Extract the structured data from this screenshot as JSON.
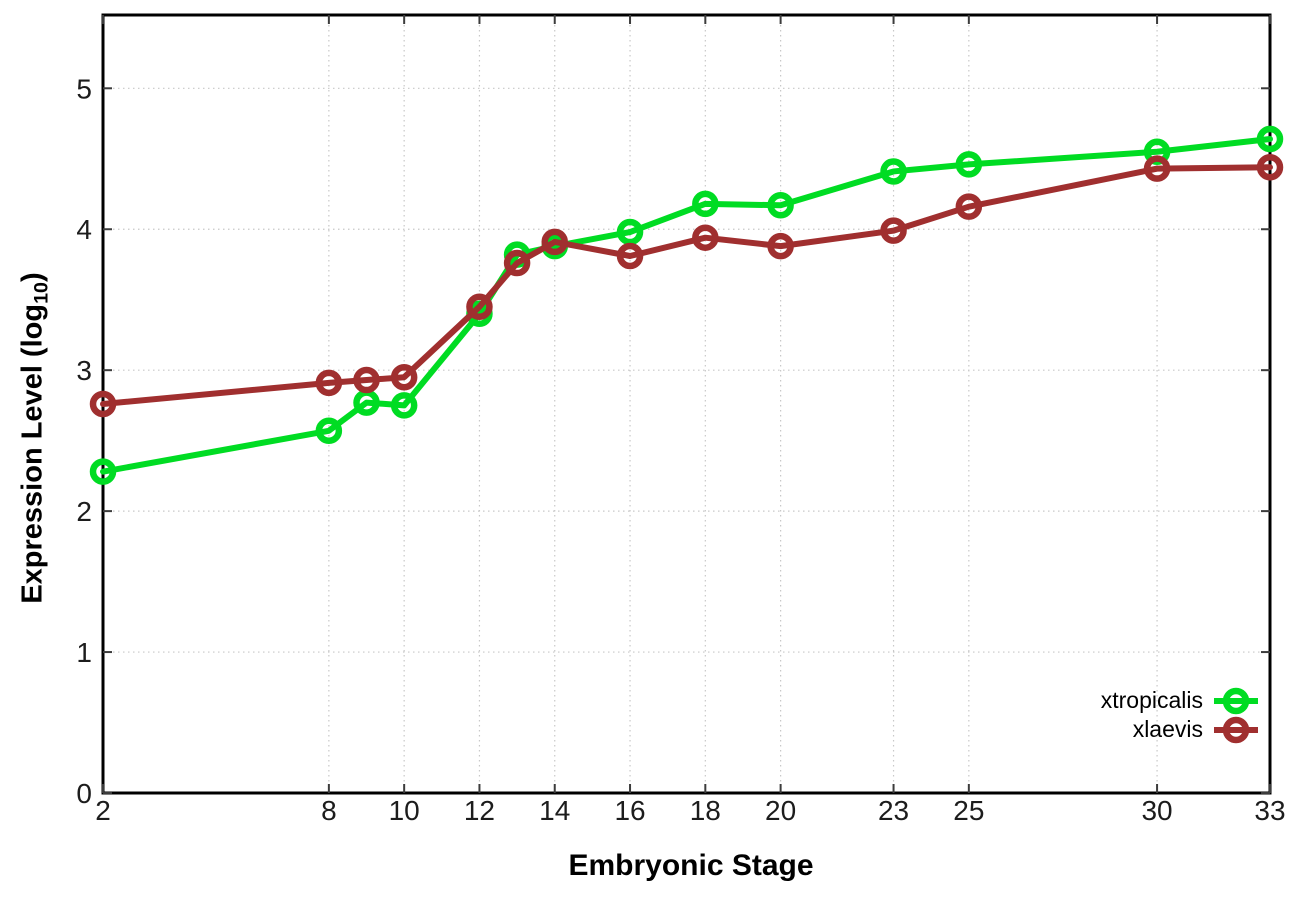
{
  "chart_data": {
    "type": "line",
    "title": "",
    "xlabel": "Embryonic Stage",
    "ylabel": "Expression Level (log10)",
    "ylabel_parts": {
      "pre": "Expression Level (log",
      "sub": "10",
      "post": ")"
    },
    "x": [
      2,
      8,
      9,
      10,
      12,
      13,
      14,
      16,
      18,
      20,
      23,
      25,
      30,
      33
    ],
    "series": [
      {
        "name": "xtropicalis",
        "color": "#00dc23",
        "values": [
          2.28,
          2.57,
          2.77,
          2.75,
          3.4,
          3.82,
          3.88,
          3.98,
          4.18,
          4.17,
          4.41,
          4.46,
          4.55,
          4.64
        ]
      },
      {
        "name": "xlaevis",
        "color": "#a02f2f",
        "values": [
          2.76,
          2.91,
          2.93,
          2.95,
          3.45,
          3.76,
          3.91,
          3.81,
          3.94,
          3.88,
          3.99,
          4.16,
          4.43,
          4.44
        ]
      }
    ],
    "xticks": [
      2,
      8,
      10,
      12,
      14,
      16,
      18,
      20,
      23,
      25,
      30,
      33
    ],
    "yticks": [
      0,
      1,
      2,
      3,
      4,
      5
    ],
    "xlim": [
      2,
      33
    ],
    "ylim": [
      0,
      5.52
    ],
    "grid": true,
    "legend_position": "inside bottom-right"
  }
}
